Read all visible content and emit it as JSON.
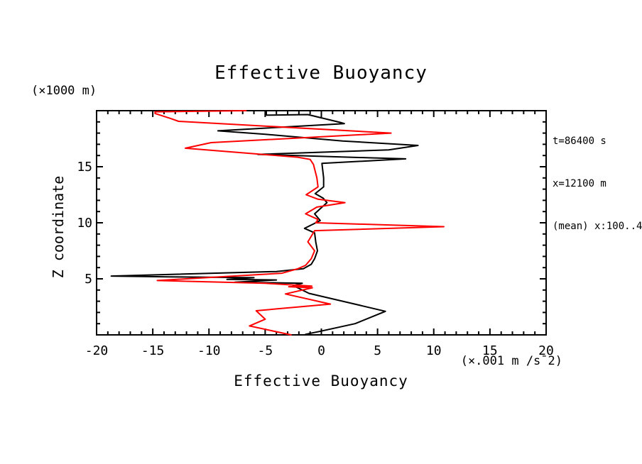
{
  "title": "Effective Buoyancy",
  "y_axis_unit": "(×1000 m)",
  "y_axis_label": "Z coordinate",
  "x_axis_label": "Effective Buoyancy",
  "x_axis_unit": "(×.001 m /s¯2)",
  "annotations": [
    "t=86400 s",
    "x=12100 m",
    "(mean) x:100..4"
  ],
  "colors": {
    "frame": "#000000",
    "series_black": "#000000",
    "series_red": "#ff0000",
    "background": "#ffffff"
  },
  "chart_data": {
    "type": "line",
    "title": "Effective Buoyancy",
    "xlabel": "Effective Buoyancy (×.001 m /s¯2)",
    "ylabel": "Z coordinate (×1000 m)",
    "xlim": [
      -20,
      20
    ],
    "ylim": [
      0,
      20
    ],
    "x_ticks_major": [
      -20,
      -15,
      -10,
      -5,
      0,
      5,
      10,
      15,
      20
    ],
    "y_ticks_major": [
      5,
      10,
      15
    ],
    "minor_tick_step": 1,
    "grid": false,
    "legend": false,
    "series": [
      {
        "name": "effective buoyancy profile (black)",
        "color": "#000000",
        "points": [
          [
            -4.9,
            20.0
          ],
          [
            -4.9,
            19.6
          ],
          [
            -1.2,
            19.65
          ],
          [
            1.7,
            18.95
          ],
          [
            2.05,
            18.85
          ],
          [
            -9.2,
            18.2
          ],
          [
            -5.0,
            17.9
          ],
          [
            1.9,
            17.3
          ],
          [
            8.6,
            16.9
          ],
          [
            6.0,
            16.5
          ],
          [
            -5.65,
            16.1
          ],
          [
            4.2,
            15.8
          ],
          [
            7.5,
            15.7
          ],
          [
            0.05,
            15.3
          ],
          [
            0.2,
            14.0
          ],
          [
            0.2,
            13.2
          ],
          [
            -0.55,
            12.6
          ],
          [
            0.15,
            12.2
          ],
          [
            0.5,
            11.8
          ],
          [
            -0.6,
            10.8
          ],
          [
            -0.1,
            10.2
          ],
          [
            -0.7,
            9.9
          ],
          [
            -1.5,
            9.5
          ],
          [
            -0.6,
            9.1
          ],
          [
            -0.5,
            8.3
          ],
          [
            -0.35,
            7.5
          ],
          [
            -0.6,
            6.8
          ],
          [
            -0.9,
            6.3
          ],
          [
            -1.6,
            5.9
          ],
          [
            -4.0,
            5.65
          ],
          [
            -18.7,
            5.25
          ],
          [
            -13.5,
            5.18
          ],
          [
            -6.0,
            5.1
          ],
          [
            -8.4,
            4.95
          ],
          [
            -4.0,
            4.9
          ],
          [
            -7.7,
            4.7
          ],
          [
            -1.7,
            4.6
          ],
          [
            -2.5,
            4.4
          ],
          [
            -1.1,
            3.7
          ],
          [
            1.9,
            3.0
          ],
          [
            5.7,
            2.1
          ],
          [
            3.0,
            1.0
          ],
          [
            -0.2,
            0.3
          ],
          [
            -1.4,
            0.05
          ]
        ]
      },
      {
        "name": "effective buoyancy profile (red)",
        "color": "#ff0000",
        "points": [
          [
            -6.7,
            20.0
          ],
          [
            -14.8,
            19.9
          ],
          [
            -14.8,
            19.75
          ],
          [
            -13.4,
            19.3
          ],
          [
            -12.7,
            19.05
          ],
          [
            6.2,
            18.0
          ],
          [
            -9.8,
            17.15
          ],
          [
            -12.1,
            16.65
          ],
          [
            -2.1,
            15.85
          ],
          [
            -1.0,
            15.65
          ],
          [
            -0.7,
            15.2
          ],
          [
            -0.4,
            14.0
          ],
          [
            -0.3,
            13.2
          ],
          [
            -1.35,
            12.5
          ],
          [
            -0.3,
            12.1
          ],
          [
            2.1,
            11.8
          ],
          [
            -0.4,
            11.4
          ],
          [
            -1.4,
            10.8
          ],
          [
            -0.3,
            10.3
          ],
          [
            -0.5,
            10.0
          ],
          [
            10.9,
            9.65
          ],
          [
            -0.6,
            9.3
          ],
          [
            -1.2,
            8.3
          ],
          [
            -0.6,
            7.5
          ],
          [
            -0.9,
            6.8
          ],
          [
            -1.4,
            6.2
          ],
          [
            -2.1,
            5.9
          ],
          [
            -3.5,
            5.5
          ],
          [
            -14.6,
            4.85
          ],
          [
            -5.0,
            4.6
          ],
          [
            -0.85,
            4.35
          ],
          [
            -2.9,
            4.3
          ],
          [
            -0.8,
            4.2
          ],
          [
            -3.2,
            3.65
          ],
          [
            0.8,
            2.75
          ],
          [
            -5.8,
            2.15
          ],
          [
            -5.0,
            1.4
          ],
          [
            -6.4,
            0.8
          ],
          [
            -2.7,
            0.0
          ]
        ]
      }
    ]
  }
}
